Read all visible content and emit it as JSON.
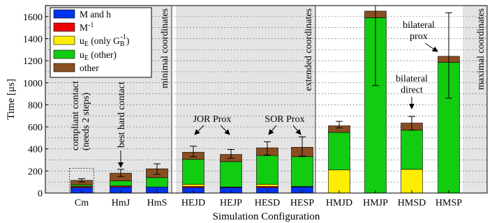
{
  "chart_data": {
    "type": "bar",
    "stacked": true,
    "xlabel": "Simulation Configuration",
    "ylabel": "Time [μs]",
    "ylim": [
      0,
      1700
    ],
    "yticks": [
      0,
      200,
      400,
      600,
      800,
      1000,
      1200,
      1400,
      1600
    ],
    "grid": true,
    "legend_placement": "top-left",
    "categories": [
      "Cm",
      "HmJ",
      "HmS",
      "HEJD",
      "HEJP",
      "HESD",
      "HESP",
      "HMJD",
      "HMJP",
      "HMSD",
      "HMSP"
    ],
    "series": [
      {
        "name": "M and h",
        "color": "#0033ee",
        "values": [
          50,
          55,
          55,
          50,
          50,
          50,
          55,
          0,
          0,
          0,
          0
        ]
      },
      {
        "name": "M⁻¹",
        "color": "#ee0000",
        "values": [
          10,
          10,
          0,
          10,
          5,
          10,
          5,
          0,
          0,
          0,
          0
        ]
      },
      {
        "name": "u_E (only G_B⁻¹)",
        "color": "#ffee00",
        "values": [
          0,
          0,
          0,
          20,
          0,
          20,
          0,
          210,
          0,
          215,
          0
        ]
      },
      {
        "name": "u_E (other)",
        "color": "#11cc11",
        "values": [
          15,
          45,
          85,
          225,
          230,
          260,
          270,
          340,
          1590,
          355,
          1185
        ]
      },
      {
        "name": "other",
        "color": "#8a4e22",
        "values": [
          40,
          70,
          80,
          65,
          65,
          70,
          85,
          60,
          60,
          65,
          55
        ]
      }
    ],
    "error_bars": [
      {
        "category": "Cm",
        "low": 100,
        "high": 130
      },
      {
        "category": "HmJ",
        "low": 150,
        "high": 215
      },
      {
        "category": "HmS",
        "low": 170,
        "high": 265
      },
      {
        "category": "HEJD",
        "low": 330,
        "high": 425
      },
      {
        "category": "HEJP",
        "low": 315,
        "high": 395
      },
      {
        "category": "HESD",
        "low": 345,
        "high": 465
      },
      {
        "category": "HESP",
        "low": 335,
        "high": 510
      },
      {
        "category": "HMJD",
        "low": 590,
        "high": 650
      },
      {
        "category": "HMJP",
        "low": 975,
        "high": 1700
      },
      {
        "category": "HMSD",
        "low": 570,
        "high": 695
      },
      {
        "category": "HMSP",
        "low": 860,
        "high": 1635
      }
    ],
    "dashed_box": {
      "category": "Cm",
      "low": 0,
      "high": 225
    },
    "groups": [
      {
        "label": "minimal coordinates",
        "categories": [
          "Cm",
          "HmJ",
          "HmS"
        ],
        "shaded": true
      },
      {
        "label": "extended coordinates",
        "categories": [
          "HEJD",
          "HEJP",
          "HESD",
          "HESP"
        ],
        "shaded": true
      },
      {
        "label": "maximal coordinates",
        "categories": [
          "HMJD",
          "HMJP",
          "HMSD",
          "HMSP"
        ],
        "shaded": false
      }
    ],
    "annotations": [
      {
        "text": "compliant contact",
        "category": "Cm"
      },
      {
        "text": "(needs 2 steps)",
        "category": "Cm"
      },
      {
        "text": "best hard contact",
        "category": "HmJ"
      },
      {
        "text": "JOR Prox",
        "categories": [
          "HEJD",
          "HEJP"
        ]
      },
      {
        "text": "SOR Prox",
        "categories": [
          "HESD",
          "HESP"
        ]
      },
      {
        "text": "bilateral",
        "category": "HMSD"
      },
      {
        "text": "direct",
        "category": "HMSD"
      },
      {
        "text": "bilateral",
        "category": "HMSP"
      },
      {
        "text": "prox",
        "category": "HMSP"
      }
    ]
  }
}
